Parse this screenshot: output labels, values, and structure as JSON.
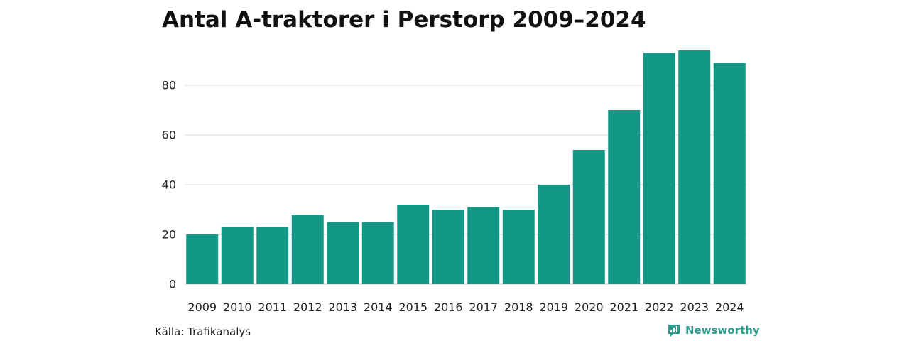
{
  "chart_data": {
    "type": "bar",
    "title": "Antal A-traktorer i Perstorp 2009–2024",
    "xlabel": "",
    "ylabel": "",
    "categories": [
      "2009",
      "2010",
      "2011",
      "2012",
      "2013",
      "2014",
      "2015",
      "2016",
      "2017",
      "2018",
      "2019",
      "2020",
      "2021",
      "2022",
      "2023",
      "2024"
    ],
    "values": [
      20,
      23,
      23,
      28,
      25,
      25,
      32,
      30,
      31,
      30,
      40,
      54,
      70,
      93,
      94,
      89
    ],
    "ylim": [
      0,
      100
    ],
    "yticks": [
      0,
      20,
      40,
      60,
      80
    ],
    "grid": true,
    "bar_color": "#139887"
  },
  "footer": {
    "source": "Källa: Trafikanalys",
    "brand": "Newsworthy",
    "brand_icon": "newsworthy-logo-icon",
    "brand_color": "#2a9d8f"
  }
}
